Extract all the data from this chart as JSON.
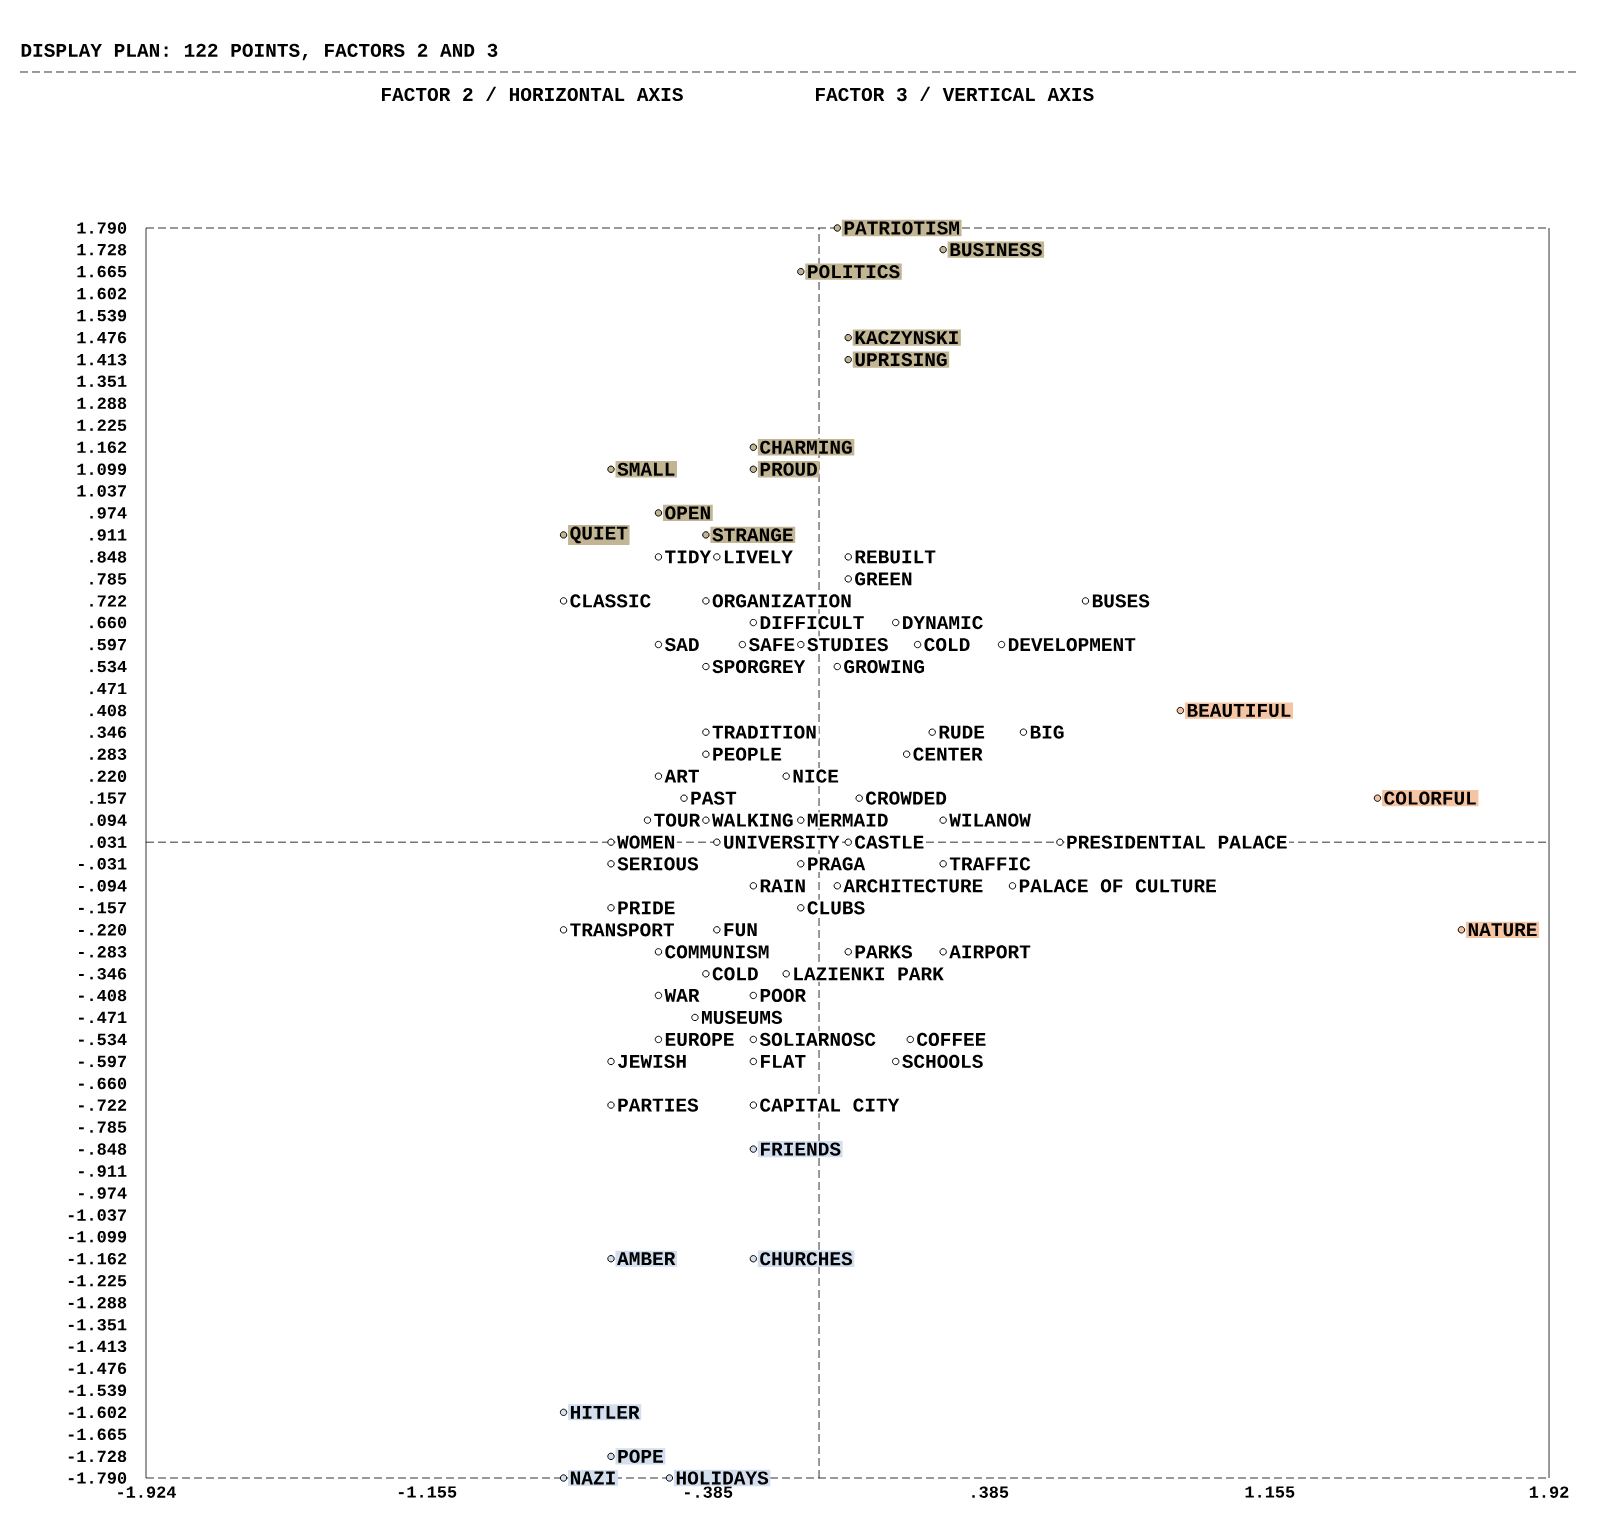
{
  "chart_data": {
    "type": "scatter",
    "title": "DISPLAY PLAN: 122 POINTS, FACTORS 2 AND 3",
    "annotations": [
      "FACTOR 2 / HORIZONTAL AXIS",
      "FACTOR 3 / VERTICAL AXIS"
    ],
    "marker": "circle",
    "xlim": [
      -1.924,
      1.92
    ],
    "ylim": [
      -1.79,
      1.79
    ],
    "xticks": [
      -1.924,
      -1.155,
      {
        "value": -0.385,
        "label": "-.385"
      },
      {
        "value": 0.385,
        "label": ".385"
      },
      1.155,
      1.92
    ],
    "yticks": [
      {
        "value": 1.79,
        "label": "1.790"
      },
      {
        "value": 1.728,
        "label": "1.728"
      },
      {
        "value": 1.665,
        "label": "1.665"
      },
      {
        "value": 1.602,
        "label": "1.602"
      },
      {
        "value": 1.539,
        "label": "1.539"
      },
      {
        "value": 1.476,
        "label": "1.476"
      },
      {
        "value": 1.413,
        "label": "1.413"
      },
      {
        "value": 1.351,
        "label": "1.351"
      },
      {
        "value": 1.288,
        "label": "1.288"
      },
      {
        "value": 1.225,
        "label": "1.225"
      },
      {
        "value": 1.162,
        "label": "1.162"
      },
      {
        "value": 1.099,
        "label": "1.099"
      },
      {
        "value": 1.037,
        "label": "1.037"
      },
      {
        "value": 0.974,
        "label": ".974"
      },
      {
        "value": 0.911,
        "label": ".911"
      },
      {
        "value": 0.848,
        "label": ".848"
      },
      {
        "value": 0.785,
        "label": ".785"
      },
      {
        "value": 0.722,
        "label": ".722"
      },
      {
        "value": 0.66,
        "label": ".660"
      },
      {
        "value": 0.597,
        "label": ".597"
      },
      {
        "value": 0.534,
        "label": ".534"
      },
      {
        "value": 0.471,
        "label": ".471"
      },
      {
        "value": 0.408,
        "label": ".408"
      },
      {
        "value": 0.346,
        "label": ".346"
      },
      {
        "value": 0.283,
        "label": ".283"
      },
      {
        "value": 0.22,
        "label": ".220"
      },
      {
        "value": 0.157,
        "label": ".157"
      },
      {
        "value": 0.094,
        "label": ".094"
      },
      {
        "value": 0.031,
        "label": ".031"
      },
      {
        "value": -0.031,
        "label": "-.031"
      },
      {
        "value": -0.094,
        "label": "-.094"
      },
      {
        "value": -0.157,
        "label": "-.157"
      },
      {
        "value": -0.22,
        "label": "-.220"
      },
      {
        "value": -0.283,
        "label": "-.283"
      },
      {
        "value": -0.346,
        "label": "-.346"
      },
      {
        "value": -0.408,
        "label": "-.408"
      },
      {
        "value": -0.471,
        "label": "-.471"
      },
      {
        "value": -0.534,
        "label": "-.534"
      },
      {
        "value": -0.597,
        "label": "-.597"
      },
      {
        "value": -0.66,
        "label": "-.660"
      },
      {
        "value": -0.722,
        "label": "-.722"
      },
      {
        "value": -0.785,
        "label": "-.785"
      },
      {
        "value": -0.848,
        "label": "-.848"
      },
      {
        "value": -0.911,
        "label": "-.911"
      },
      {
        "value": -0.974,
        "label": "-.974"
      },
      {
        "value": -1.037,
        "label": "-1.037"
      },
      {
        "value": -1.099,
        "label": "-1.099"
      },
      {
        "value": -1.162,
        "label": "-1.162"
      },
      {
        "value": -1.225,
        "label": "-1.225"
      },
      {
        "value": -1.288,
        "label": "-1.288"
      },
      {
        "value": -1.351,
        "label": "-1.351"
      },
      {
        "value": -1.413,
        "label": "-1.413"
      },
      {
        "value": -1.476,
        "label": "-1.476"
      },
      {
        "value": -1.539,
        "label": "-1.539"
      },
      {
        "value": -1.602,
        "label": "-1.602"
      },
      {
        "value": -1.665,
        "label": "-1.665"
      },
      {
        "value": -1.728,
        "label": "-1.728"
      },
      {
        "value": -1.79,
        "label": "-1.790"
      }
    ],
    "ref_lines": [
      {
        "axis": "x",
        "value": -0.08,
        "line_style": "dashed",
        "color": "#000000"
      },
      {
        "axis": "y",
        "value": 0.031,
        "line_style": "dashed",
        "color": "#000000"
      }
    ],
    "series": [
      {
        "color": "#ffffff",
        "x": [
          -0.52,
          -0.36,
          0.0,
          0.0,
          -0.78,
          -0.39,
          0.65,
          -0.26,
          0.13,
          -0.52,
          -0.29,
          -0.13,
          0.19,
          0.42,
          -0.39,
          -0.03,
          -0.39,
          0.23,
          0.48,
          -0.39,
          0.16,
          -0.52,
          -0.17,
          -0.45,
          0.03,
          -0.55,
          -0.39,
          -0.13,
          0.26,
          -0.65,
          -0.36,
          0.0,
          0.58,
          -0.65,
          -0.13,
          0.26,
          -0.26,
          -0.03,
          0.45,
          -0.65,
          -0.13,
          -0.78,
          -0.36,
          -0.52,
          0.0,
          0.26,
          -0.39,
          -0.17,
          -0.52,
          -0.26,
          -0.42,
          -0.52,
          -0.26,
          0.17,
          -0.65,
          -0.26,
          0.13,
          -0.65,
          -0.26
        ],
        "values": [
          0.848,
          0.848,
          0.848,
          0.785,
          0.722,
          0.722,
          0.722,
          0.66,
          0.66,
          0.597,
          0.597,
          0.597,
          0.597,
          0.597,
          0.534,
          0.534,
          0.346,
          0.346,
          0.346,
          0.283,
          0.283,
          0.22,
          0.22,
          0.157,
          0.157,
          0.094,
          0.094,
          0.094,
          0.094,
          0.031,
          0.031,
          0.031,
          0.031,
          -0.031,
          -0.031,
          -0.031,
          -0.094,
          -0.094,
          -0.094,
          -0.157,
          -0.157,
          -0.22,
          -0.22,
          -0.283,
          -0.283,
          -0.283,
          -0.346,
          -0.346,
          -0.408,
          -0.408,
          -0.471,
          -0.534,
          -0.534,
          -0.534,
          -0.597,
          -0.597,
          -0.597,
          -0.722,
          -0.722
        ],
        "value_labels": [
          "TIDY",
          "LIVELY",
          "REBUILT",
          "GREEN",
          "CLASSIC",
          "ORGANIZATION",
          "BUSES",
          "DIFFICULT",
          "DYNAMIC",
          "SAD",
          "SAFE",
          "STUDIES",
          "COLD",
          "DEVELOPMENT",
          "SPORGREY",
          "GROWING",
          "TRADITION",
          "RUDE",
          "BIG",
          "PEOPLE",
          "CENTER",
          "ART",
          "NICE",
          "PAST",
          "CROWDED",
          "TOUR",
          "WALKING",
          "MERMAID",
          "WILANOW",
          "WOMEN",
          "UNIVERSITY",
          "CASTLE",
          "PRESIDENTIAL PALACE",
          "SERIOUS",
          "PRAGA",
          "TRAFFIC",
          "RAIN",
          "ARCHITECTURE",
          "PALACE OF CULTURE",
          "PRIDE",
          "CLUBS",
          "TRANSPORT",
          "FUN",
          "COMMUNISM",
          "PARKS",
          "AIRPORT",
          "COLD",
          "LAZIENKI PARK",
          "WAR",
          "POOR",
          "MUSEUMS",
          "EUROPE",
          "SOLIARNOSC",
          "COFFEE",
          "JEWISH",
          "FLAT",
          "SCHOOLS",
          "PARTIES",
          "CAPITAL CITY"
        ]
      },
      {
        "color": "#c2b593",
        "x": [
          -0.03,
          0.26,
          -0.13,
          0.0,
          0.0,
          -0.26,
          -0.65,
          -0.26,
          -0.52,
          -0.78,
          -0.39
        ],
        "values": [
          1.79,
          1.728,
          1.665,
          1.476,
          1.413,
          1.162,
          1.099,
          1.099,
          0.974,
          0.911,
          0.911
        ],
        "value_labels": [
          "PATRIOTISM",
          "BUSINESS",
          "POLITICS",
          "KACZYNSKI",
          "UPRISING",
          "CHARMING",
          "SMALL",
          "PROUD",
          "OPEN",
          "QUIET",
          "STRANGE"
        ]
      },
      {
        "color": "#f5c4a3",
        "x": [
          0.91,
          1.45,
          1.68
        ],
        "values": [
          0.408,
          0.157,
          -0.22
        ],
        "value_labels": [
          "BEAUTIFUL",
          "COLORFUL",
          "NATURE"
        ]
      },
      {
        "color": "#d3deee",
        "x": [
          -0.26,
          -0.65,
          -0.26,
          -0.78,
          -0.65,
          -0.78,
          -0.49
        ],
        "values": [
          -0.848,
          -1.162,
          -1.162,
          -1.602,
          -1.728,
          -1.79,
          -1.79
        ],
        "value_labels": [
          "FRIENDS",
          "AMBER",
          "CHURCHES",
          "HITLER",
          "POPE",
          "NAZI",
          "HOLIDAYS"
        ]
      }
    ]
  }
}
